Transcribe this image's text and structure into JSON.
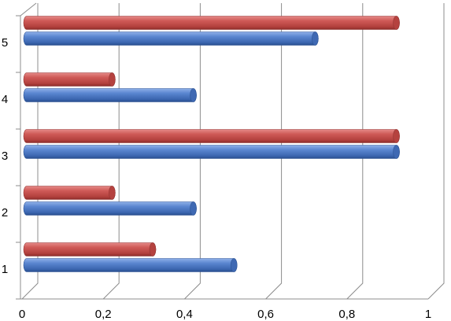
{
  "chart_data": {
    "type": "bar",
    "orientation": "horizontal",
    "style": "3d-cylinder",
    "categories": [
      "1",
      "2",
      "3",
      "4",
      "5"
    ],
    "series": [
      {
        "values": [
          0.51,
          0.41,
          0.91,
          0.41,
          0.71
        ],
        "color": "#4472C4"
      },
      {
        "values": [
          0.31,
          0.21,
          0.91,
          0.21,
          0.91
        ],
        "color": "#C0504D"
      }
    ],
    "xlim": [
      0,
      1
    ],
    "x_ticks": [
      "0",
      "0,2",
      "0,4",
      "0,6",
      "0,8",
      "1"
    ],
    "grid": true,
    "legend": "none",
    "title": "",
    "xlabel": "",
    "ylabel": ""
  }
}
